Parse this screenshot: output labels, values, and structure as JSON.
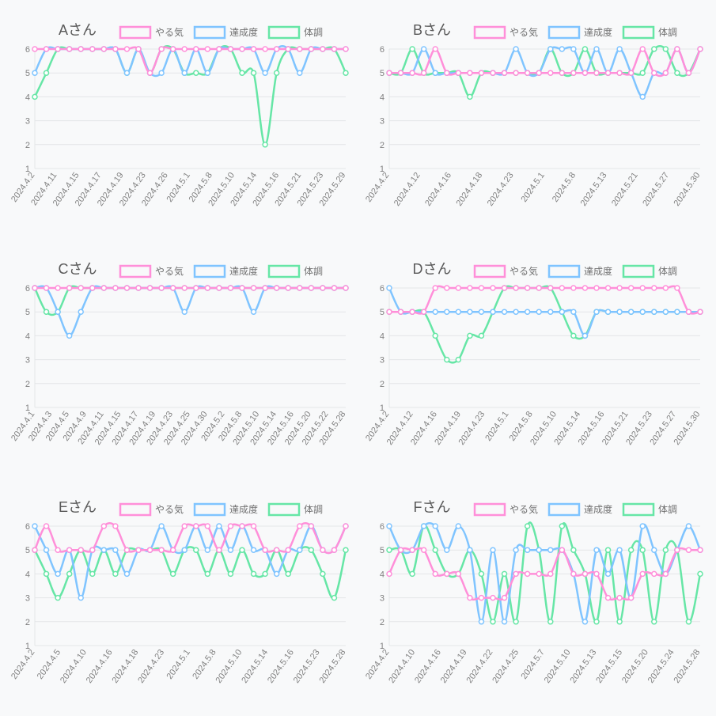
{
  "global": {
    "background_color": "#f8f9fa",
    "panel_bg": "#f8f9fa",
    "grid_color": "#e4e6e8",
    "axis_text_color": "#808080",
    "title_color": "#5a5a5a",
    "title_fontsize": 18,
    "axis_fontsize": 11,
    "legend_fontsize": 12,
    "line_width": 2.5,
    "marker_radius": 3,
    "ylim": [
      1,
      6
    ],
    "yticks": [
      1,
      2,
      3,
      4,
      5,
      6
    ],
    "series_defs": [
      {
        "key": "yaruki",
        "label": "やる気",
        "color": "#ff8fd9"
      },
      {
        "key": "tassei",
        "label": "達成度",
        "color": "#7fc4ff"
      },
      {
        "key": "taicho",
        "label": "体調",
        "color": "#66e6a6"
      }
    ],
    "legend_box_w": 38,
    "legend_box_h": 14
  },
  "panels": [
    {
      "id": "A",
      "title": "Aさん",
      "x_labels": [
        "2024.4.2",
        "2024.4.11",
        "2024.4.15",
        "2024.4.17",
        "2024.4.19",
        "2024.4.23",
        "2024.4.26",
        "2024.5.1",
        "2024.5.8",
        "2024.5.10",
        "2024.5.14",
        "2024.5.16",
        "2024.5.21",
        "2024.5.23",
        "2024.5.29"
      ],
      "n_points": 28,
      "series": {
        "yaruki": [
          6,
          6,
          6,
          6,
          6,
          6,
          6,
          6,
          6,
          6,
          5,
          6,
          6,
          6,
          6,
          6,
          6,
          6,
          6,
          6,
          6,
          6,
          6,
          6,
          6,
          6,
          6,
          6
        ],
        "tassei": [
          5,
          6,
          6,
          6,
          6,
          6,
          6,
          6,
          5,
          6,
          5,
          5,
          6,
          5,
          6,
          5,
          6,
          6,
          6,
          6,
          5,
          6,
          6,
          5,
          6,
          6,
          6,
          6
        ],
        "taicho": [
          4,
          5,
          6,
          6,
          6,
          6,
          6,
          6,
          5,
          6,
          5,
          6,
          6,
          5,
          5,
          5,
          6,
          6,
          5,
          5,
          2,
          5,
          6,
          6,
          6,
          6,
          6,
          5
        ]
      }
    },
    {
      "id": "B",
      "title": "Bさん",
      "x_labels": [
        "2024.4.2",
        "2024.4.12",
        "2024.4.16",
        "2024.4.18",
        "2024.4.23",
        "2024.5.1",
        "2024.5.8",
        "2024.5.13",
        "2024.5.21",
        "2024.5.27",
        "2024.5.30"
      ],
      "n_points": 28,
      "series": {
        "yaruki": [
          5,
          5,
          5,
          5,
          6,
          5,
          5,
          5,
          5,
          5,
          5,
          5,
          5,
          5,
          5,
          5,
          5,
          5,
          5,
          5,
          5,
          5,
          6,
          5,
          5,
          6,
          5,
          6
        ],
        "tassei": [
          5,
          5,
          5,
          6,
          5,
          5,
          5,
          5,
          5,
          5,
          5,
          6,
          5,
          5,
          6,
          6,
          6,
          5,
          6,
          5,
          6,
          5,
          4,
          5,
          5,
          6,
          5,
          6
        ],
        "taicho": [
          5,
          5,
          6,
          5,
          5,
          5,
          5,
          4,
          5,
          5,
          5,
          5,
          5,
          5,
          6,
          5,
          5,
          6,
          5,
          5,
          5,
          5,
          5,
          6,
          6,
          5,
          5,
          6
        ]
      }
    },
    {
      "id": "C",
      "title": "Cさん",
      "x_labels": [
        "2024.4.1",
        "2024.4.3",
        "2024.4.5",
        "2024.4.9",
        "2024.4.11",
        "2024.4.15",
        "2024.4.17",
        "2024.4.19",
        "2024.4.23",
        "2024.4.25",
        "2024.4.30",
        "2024.5.2",
        "2024.5.8",
        "2024.5.10",
        "2024.5.14",
        "2024.5.16",
        "2024.5.20",
        "2024.5.22",
        "2024.5.28"
      ],
      "n_points": 28,
      "series": {
        "yaruki": [
          6,
          6,
          6,
          6,
          6,
          6,
          6,
          6,
          6,
          6,
          6,
          6,
          6,
          6,
          6,
          6,
          6,
          6,
          6,
          6,
          6,
          6,
          6,
          6,
          6,
          6,
          6,
          6
        ],
        "tassei": [
          6,
          6,
          5,
          4,
          5,
          6,
          6,
          6,
          6,
          6,
          6,
          6,
          6,
          5,
          6,
          6,
          6,
          6,
          6,
          5,
          6,
          6,
          6,
          6,
          6,
          6,
          6,
          6
        ],
        "taicho": [
          6,
          5,
          5,
          6,
          6,
          6,
          6,
          6,
          6,
          6,
          6,
          6,
          6,
          6,
          6,
          6,
          6,
          6,
          6,
          6,
          6,
          6,
          6,
          6,
          6,
          6,
          6,
          6
        ]
      }
    },
    {
      "id": "D",
      "title": "Dさん",
      "x_labels": [
        "2024.4.2",
        "2024.4.12",
        "2024.4.16",
        "2024.4.19",
        "2024.4.23",
        "2024.5.1",
        "2024.5.8",
        "2024.5.10",
        "2024.5.14",
        "2024.5.16",
        "2024.5.21",
        "2024.5.23",
        "2024.5.27",
        "2024.5.30"
      ],
      "n_points": 28,
      "series": {
        "yaruki": [
          5,
          5,
          5,
          5,
          6,
          6,
          6,
          6,
          6,
          6,
          6,
          6,
          6,
          6,
          6,
          6,
          6,
          6,
          6,
          6,
          6,
          6,
          6,
          6,
          6,
          6,
          5,
          5
        ],
        "tassei": [
          6,
          5,
          5,
          5,
          5,
          5,
          5,
          5,
          5,
          5,
          5,
          5,
          5,
          5,
          5,
          5,
          5,
          4,
          5,
          5,
          5,
          5,
          5,
          5,
          5,
          5,
          5,
          5
        ],
        "taicho": [
          5,
          5,
          5,
          5,
          4,
          3,
          3,
          4,
          4,
          5,
          6,
          6,
          6,
          6,
          6,
          5,
          4,
          4,
          5,
          5,
          5,
          5,
          5,
          5,
          5,
          5,
          5,
          5
        ]
      }
    },
    {
      "id": "E",
      "title": "Eさん",
      "x_labels": [
        "2024.4.2",
        "2024.4.5",
        "2024.4.10",
        "2024.4.16",
        "2024.4.18",
        "2024.4.23",
        "2024.5.1",
        "2024.5.8",
        "2024.5.10",
        "2024.5.14",
        "2024.5.16",
        "2024.5.23",
        "2024.5.28"
      ],
      "n_points": 28,
      "series": {
        "yaruki": [
          5,
          6,
          5,
          5,
          5,
          5,
          6,
          6,
          5,
          5,
          5,
          5,
          5,
          6,
          6,
          6,
          5,
          6,
          6,
          6,
          5,
          5,
          5,
          6,
          6,
          5,
          5,
          6
        ],
        "tassei": [
          6,
          5,
          4,
          5,
          3,
          5,
          5,
          5,
          4,
          5,
          5,
          6,
          5,
          5,
          6,
          5,
          6,
          5,
          6,
          5,
          5,
          4,
          5,
          5,
          6,
          5,
          5,
          6
        ],
        "taicho": [
          5,
          4,
          3,
          4,
          5,
          4,
          5,
          4,
          5,
          5,
          5,
          5,
          4,
          5,
          5,
          4,
          5,
          4,
          5,
          4,
          4,
          5,
          4,
          5,
          5,
          4,
          3,
          5
        ]
      }
    },
    {
      "id": "F",
      "title": "Fさん",
      "x_labels": [
        "2024.4.2",
        "2024.4.10",
        "2024.4.16",
        "2024.4.19",
        "2024.4.22",
        "2024.4.25",
        "2024.5.7",
        "2024.5.10",
        "2024.5.13",
        "2024.5.15",
        "2024.5.20",
        "2024.5.24",
        "2024.5.28"
      ],
      "n_points": 28,
      "series": {
        "yaruki": [
          4,
          5,
          5,
          5,
          4,
          4,
          4,
          3,
          3,
          3,
          3,
          4,
          4,
          4,
          4,
          5,
          4,
          4,
          4,
          3,
          3,
          3,
          4,
          4,
          4,
          5,
          5,
          5
        ],
        "tassei": [
          6,
          5,
          5,
          6,
          6,
          5,
          6,
          5,
          2,
          5,
          2,
          5,
          5,
          5,
          5,
          5,
          4,
          2,
          5,
          4,
          5,
          3,
          6,
          5,
          4,
          5,
          6,
          5
        ],
        "taicho": [
          5,
          5,
          4,
          6,
          5,
          4,
          4,
          5,
          4,
          2,
          4,
          2,
          6,
          5,
          2,
          6,
          5,
          4,
          2,
          5,
          2,
          5,
          5,
          2,
          5,
          5,
          2,
          4
        ]
      }
    }
  ]
}
